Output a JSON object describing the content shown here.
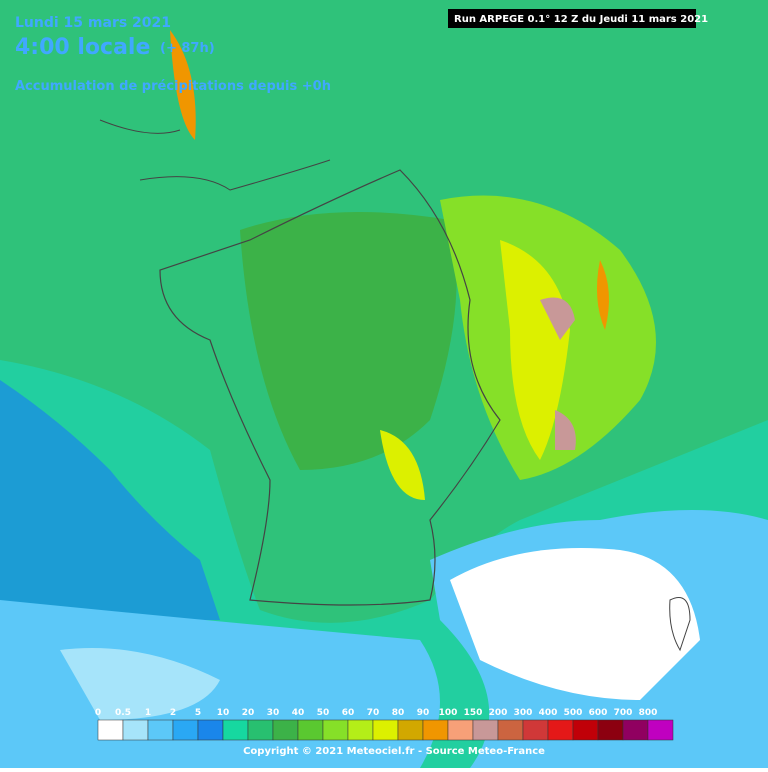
{
  "header": {
    "date": "Lundi 15 mars 2021",
    "time": "4:00 locale",
    "offset": "(+ 87h)",
    "subtitle": "Accumulation de précipitations depuis +0h",
    "run": "Run ARPEGE 0.1° 12 Z du Jeudi 11 mars 2021"
  },
  "legend": {
    "items": [
      {
        "label": "0",
        "color": "#ffffff"
      },
      {
        "label": "0.5",
        "color": "#a6e4fa"
      },
      {
        "label": "1",
        "color": "#5cc8f8"
      },
      {
        "label": "2",
        "color": "#2aa8f4"
      },
      {
        "label": "5",
        "color": "#1a86ea"
      },
      {
        "label": "10",
        "color": "#16d8a0"
      },
      {
        "label": "20",
        "color": "#28c070"
      },
      {
        "label": "30",
        "color": "#3cb248"
      },
      {
        "label": "40",
        "color": "#5ac830"
      },
      {
        "label": "50",
        "color": "#86e028"
      },
      {
        "label": "60",
        "color": "#b4ee18"
      },
      {
        "label": "70",
        "color": "#dcf000"
      },
      {
        "label": "80",
        "color": "#d2a800"
      },
      {
        "label": "90",
        "color": "#f09600"
      },
      {
        "label": "100",
        "color": "#f7a078"
      },
      {
        "label": "150",
        "color": "#c89898"
      },
      {
        "label": "200",
        "color": "#cc6440"
      },
      {
        "label": "300",
        "color": "#d03838"
      },
      {
        "label": "400",
        "color": "#e41818"
      },
      {
        "label": "500",
        "color": "#c00008"
      },
      {
        "label": "600",
        "color": "#8c0010"
      },
      {
        "label": "700",
        "color": "#900060"
      },
      {
        "label": "800",
        "color": "#c000c0"
      }
    ]
  },
  "footer": {
    "copyright": "Copyright © 2021 Meteociel.fr - Source Meteo-France"
  }
}
